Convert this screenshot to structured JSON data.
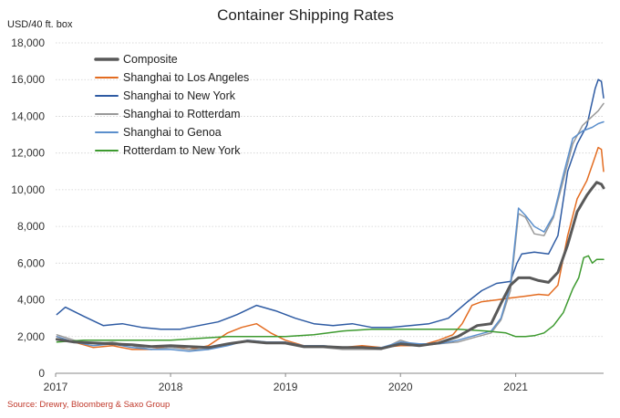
{
  "chart_data": {
    "type": "line",
    "title": "Container Shipping Rates",
    "ylabel": "USD/40 ft. box",
    "xlabel": "",
    "source": "Source: Drewry, Bloomberg & Saxo Group",
    "x_ticks": [
      "2017",
      "2018",
      "2019",
      "2020",
      "2021"
    ],
    "y_ticks": [
      "0",
      "2,000",
      "4,000",
      "6,000",
      "8,000",
      "10,000",
      "12,000",
      "14,000",
      "16,000",
      "18,000"
    ],
    "xlim": [
      "2017-01-01",
      "2021-10-07"
    ],
    "ylim": [
      0,
      18000
    ],
    "grid": "horizontal",
    "legend_position": "top-left",
    "series": [
      {
        "name": "Composite",
        "color": "#595959",
        "width": 3,
        "points": [
          [
            "2017-01-05",
            1850
          ],
          [
            "2017-03-01",
            1700
          ],
          [
            "2017-05-01",
            1650
          ],
          [
            "2017-07-01",
            1600
          ],
          [
            "2017-09-01",
            1550
          ],
          [
            "2017-11-01",
            1450
          ],
          [
            "2018-01-01",
            1500
          ],
          [
            "2018-03-01",
            1450
          ],
          [
            "2018-05-01",
            1400
          ],
          [
            "2018-07-01",
            1600
          ],
          [
            "2018-09-01",
            1750
          ],
          [
            "2018-11-01",
            1650
          ],
          [
            "2019-01-01",
            1650
          ],
          [
            "2019-03-01",
            1450
          ],
          [
            "2019-05-01",
            1450
          ],
          [
            "2019-07-01",
            1400
          ],
          [
            "2019-09-01",
            1400
          ],
          [
            "2019-11-01",
            1350
          ],
          [
            "2020-01-01",
            1600
          ],
          [
            "2020-03-01",
            1500
          ],
          [
            "2020-05-01",
            1650
          ],
          [
            "2020-07-01",
            2000
          ],
          [
            "2020-09-01",
            2600
          ],
          [
            "2020-10-15",
            2700
          ],
          [
            "2020-11-15",
            3800
          ],
          [
            "2020-12-15",
            4800
          ],
          [
            "2021-01-10",
            5200
          ],
          [
            "2021-02-15",
            5200
          ],
          [
            "2021-03-15",
            5050
          ],
          [
            "2021-04-15",
            4950
          ],
          [
            "2021-05-15",
            5500
          ],
          [
            "2021-06-15",
            7000
          ],
          [
            "2021-07-15",
            8800
          ],
          [
            "2021-08-15",
            9700
          ],
          [
            "2021-09-01",
            10100
          ],
          [
            "2021-09-15",
            10400
          ],
          [
            "2021-09-30",
            10300
          ],
          [
            "2021-10-07",
            10100
          ]
        ]
      },
      {
        "name": "Shanghai to Los Angeles",
        "color": "#e36c21",
        "width": 1.5,
        "points": [
          [
            "2017-01-05",
            2000
          ],
          [
            "2017-03-01",
            1700
          ],
          [
            "2017-05-01",
            1400
          ],
          [
            "2017-07-01",
            1500
          ],
          [
            "2017-09-01",
            1300
          ],
          [
            "2017-11-01",
            1300
          ],
          [
            "2018-01-01",
            1500
          ],
          [
            "2018-03-01",
            1300
          ],
          [
            "2018-05-01",
            1500
          ],
          [
            "2018-07-01",
            2200
          ],
          [
            "2018-08-15",
            2500
          ],
          [
            "2018-10-01",
            2700
          ],
          [
            "2018-11-15",
            2200
          ],
          [
            "2019-01-01",
            1800
          ],
          [
            "2019-03-01",
            1500
          ],
          [
            "2019-05-01",
            1400
          ],
          [
            "2019-07-01",
            1400
          ],
          [
            "2019-09-01",
            1500
          ],
          [
            "2019-11-01",
            1400
          ],
          [
            "2020-01-01",
            1500
          ],
          [
            "2020-03-01",
            1500
          ],
          [
            "2020-05-01",
            1800
          ],
          [
            "2020-06-15",
            2100
          ],
          [
            "2020-07-15",
            2700
          ],
          [
            "2020-08-15",
            3700
          ],
          [
            "2020-09-15",
            3900
          ],
          [
            "2020-11-01",
            4000
          ],
          [
            "2020-12-15",
            4100
          ],
          [
            "2021-02-01",
            4200
          ],
          [
            "2021-03-15",
            4300
          ],
          [
            "2021-04-15",
            4250
          ],
          [
            "2021-05-15",
            4800
          ],
          [
            "2021-06-15",
            7500
          ],
          [
            "2021-07-15",
            9500
          ],
          [
            "2021-08-15",
            10500
          ],
          [
            "2021-09-10",
            11800
          ],
          [
            "2021-09-20",
            12300
          ],
          [
            "2021-09-30",
            12200
          ],
          [
            "2021-10-07",
            11000
          ]
        ]
      },
      {
        "name": "Shanghai to New York",
        "color": "#2e5ba3",
        "width": 1.5,
        "points": [
          [
            "2017-01-05",
            3200
          ],
          [
            "2017-02-01",
            3600
          ],
          [
            "2017-04-01",
            3100
          ],
          [
            "2017-06-01",
            2600
          ],
          [
            "2017-08-01",
            2700
          ],
          [
            "2017-10-01",
            2500
          ],
          [
            "2017-12-01",
            2400
          ],
          [
            "2018-02-01",
            2400
          ],
          [
            "2018-04-01",
            2600
          ],
          [
            "2018-06-01",
            2800
          ],
          [
            "2018-08-01",
            3200
          ],
          [
            "2018-10-01",
            3700
          ],
          [
            "2018-12-01",
            3400
          ],
          [
            "2019-02-01",
            3000
          ],
          [
            "2019-04-01",
            2700
          ],
          [
            "2019-06-01",
            2600
          ],
          [
            "2019-08-01",
            2700
          ],
          [
            "2019-10-01",
            2500
          ],
          [
            "2019-12-01",
            2500
          ],
          [
            "2020-02-01",
            2600
          ],
          [
            "2020-04-01",
            2700
          ],
          [
            "2020-06-01",
            3000
          ],
          [
            "2020-08-01",
            3900
          ],
          [
            "2020-09-15",
            4500
          ],
          [
            "2020-11-01",
            4900
          ],
          [
            "2020-12-15",
            5000
          ],
          [
            "2021-01-05",
            6000
          ],
          [
            "2021-01-20",
            6500
          ],
          [
            "2021-03-01",
            6600
          ],
          [
            "2021-04-15",
            6500
          ],
          [
            "2021-05-15",
            7500
          ],
          [
            "2021-06-15",
            11000
          ],
          [
            "2021-07-15",
            12500
          ],
          [
            "2021-08-15",
            13500
          ],
          [
            "2021-09-10",
            15500
          ],
          [
            "2021-09-20",
            16000
          ],
          [
            "2021-09-30",
            15900
          ],
          [
            "2021-10-07",
            15000
          ]
        ]
      },
      {
        "name": "Shanghai to Rotterdam",
        "color": "#999999",
        "width": 1.5,
        "points": [
          [
            "2017-01-05",
            2100
          ],
          [
            "2017-03-01",
            1800
          ],
          [
            "2017-05-01",
            1600
          ],
          [
            "2017-07-01",
            1700
          ],
          [
            "2017-09-01",
            1500
          ],
          [
            "2017-11-01",
            1300
          ],
          [
            "2018-01-01",
            1400
          ],
          [
            "2018-03-01",
            1300
          ],
          [
            "2018-05-01",
            1300
          ],
          [
            "2018-07-01",
            1600
          ],
          [
            "2018-09-01",
            1800
          ],
          [
            "2018-11-01",
            1700
          ],
          [
            "2019-01-01",
            1600
          ],
          [
            "2019-03-01",
            1400
          ],
          [
            "2019-05-01",
            1400
          ],
          [
            "2019-07-01",
            1300
          ],
          [
            "2019-09-01",
            1300
          ],
          [
            "2019-11-01",
            1300
          ],
          [
            "2020-01-01",
            1800
          ],
          [
            "2020-03-01",
            1500
          ],
          [
            "2020-05-01",
            1600
          ],
          [
            "2020-07-01",
            1700
          ],
          [
            "2020-09-01",
            2000
          ],
          [
            "2020-10-15",
            2200
          ],
          [
            "2020-11-15",
            2900
          ],
          [
            "2020-12-15",
            4500
          ],
          [
            "2021-01-10",
            8700
          ],
          [
            "2021-02-01",
            8500
          ],
          [
            "2021-03-01",
            7600
          ],
          [
            "2021-04-01",
            7500
          ],
          [
            "2021-05-01",
            8500
          ],
          [
            "2021-06-01",
            10500
          ],
          [
            "2021-07-01",
            12500
          ],
          [
            "2021-08-01",
            13500
          ],
          [
            "2021-09-01",
            14000
          ],
          [
            "2021-09-20",
            14300
          ],
          [
            "2021-10-07",
            14700
          ]
        ]
      },
      {
        "name": "Shanghai to Genoa",
        "color": "#5b8fcc",
        "width": 1.5,
        "points": [
          [
            "2017-01-05",
            2000
          ],
          [
            "2017-03-01",
            1700
          ],
          [
            "2017-05-01",
            1500
          ],
          [
            "2017-07-01",
            1600
          ],
          [
            "2017-09-01",
            1400
          ],
          [
            "2017-11-01",
            1300
          ],
          [
            "2018-01-01",
            1300
          ],
          [
            "2018-03-01",
            1200
          ],
          [
            "2018-05-01",
            1300
          ],
          [
            "2018-07-01",
            1500
          ],
          [
            "2018-09-01",
            1800
          ],
          [
            "2018-11-01",
            1700
          ],
          [
            "2019-01-01",
            1700
          ],
          [
            "2019-03-01",
            1500
          ],
          [
            "2019-05-01",
            1500
          ],
          [
            "2019-07-01",
            1400
          ],
          [
            "2019-09-01",
            1400
          ],
          [
            "2019-11-01",
            1400
          ],
          [
            "2020-01-01",
            1700
          ],
          [
            "2020-03-01",
            1600
          ],
          [
            "2020-05-01",
            1600
          ],
          [
            "2020-07-01",
            1800
          ],
          [
            "2020-09-01",
            2100
          ],
          [
            "2020-10-15",
            2300
          ],
          [
            "2020-11-15",
            3000
          ],
          [
            "2020-12-15",
            4800
          ],
          [
            "2021-01-10",
            9000
          ],
          [
            "2021-02-01",
            8600
          ],
          [
            "2021-03-01",
            8000
          ],
          [
            "2021-04-01",
            7700
          ],
          [
            "2021-05-01",
            8600
          ],
          [
            "2021-06-01",
            10800
          ],
          [
            "2021-07-01",
            12800
          ],
          [
            "2021-08-01",
            13200
          ],
          [
            "2021-09-01",
            13400
          ],
          [
            "2021-09-20",
            13600
          ],
          [
            "2021-10-07",
            13700
          ]
        ]
      },
      {
        "name": "Rotterdam to New York",
        "color": "#3d9a2f",
        "width": 1.5,
        "points": [
          [
            "2017-01-05",
            1700
          ],
          [
            "2017-04-01",
            1800
          ],
          [
            "2017-07-01",
            1800
          ],
          [
            "2017-10-01",
            1800
          ],
          [
            "2018-01-01",
            1800
          ],
          [
            "2018-04-01",
            1900
          ],
          [
            "2018-07-01",
            2000
          ],
          [
            "2018-10-01",
            2000
          ],
          [
            "2019-01-01",
            2000
          ],
          [
            "2019-04-01",
            2100
          ],
          [
            "2019-07-01",
            2300
          ],
          [
            "2019-10-01",
            2400
          ],
          [
            "2020-01-01",
            2400
          ],
          [
            "2020-04-01",
            2400
          ],
          [
            "2020-07-01",
            2400
          ],
          [
            "2020-10-01",
            2300
          ],
          [
            "2020-12-01",
            2200
          ],
          [
            "2021-01-01",
            2000
          ],
          [
            "2021-02-01",
            2000
          ],
          [
            "2021-03-01",
            2050
          ],
          [
            "2021-04-01",
            2200
          ],
          [
            "2021-05-01",
            2600
          ],
          [
            "2021-06-01",
            3300
          ],
          [
            "2021-07-01",
            4600
          ],
          [
            "2021-07-20",
            5200
          ],
          [
            "2021-08-05",
            6300
          ],
          [
            "2021-08-20",
            6400
          ],
          [
            "2021-09-01",
            6000
          ],
          [
            "2021-09-15",
            6200
          ],
          [
            "2021-10-07",
            6200
          ]
        ]
      }
    ]
  }
}
